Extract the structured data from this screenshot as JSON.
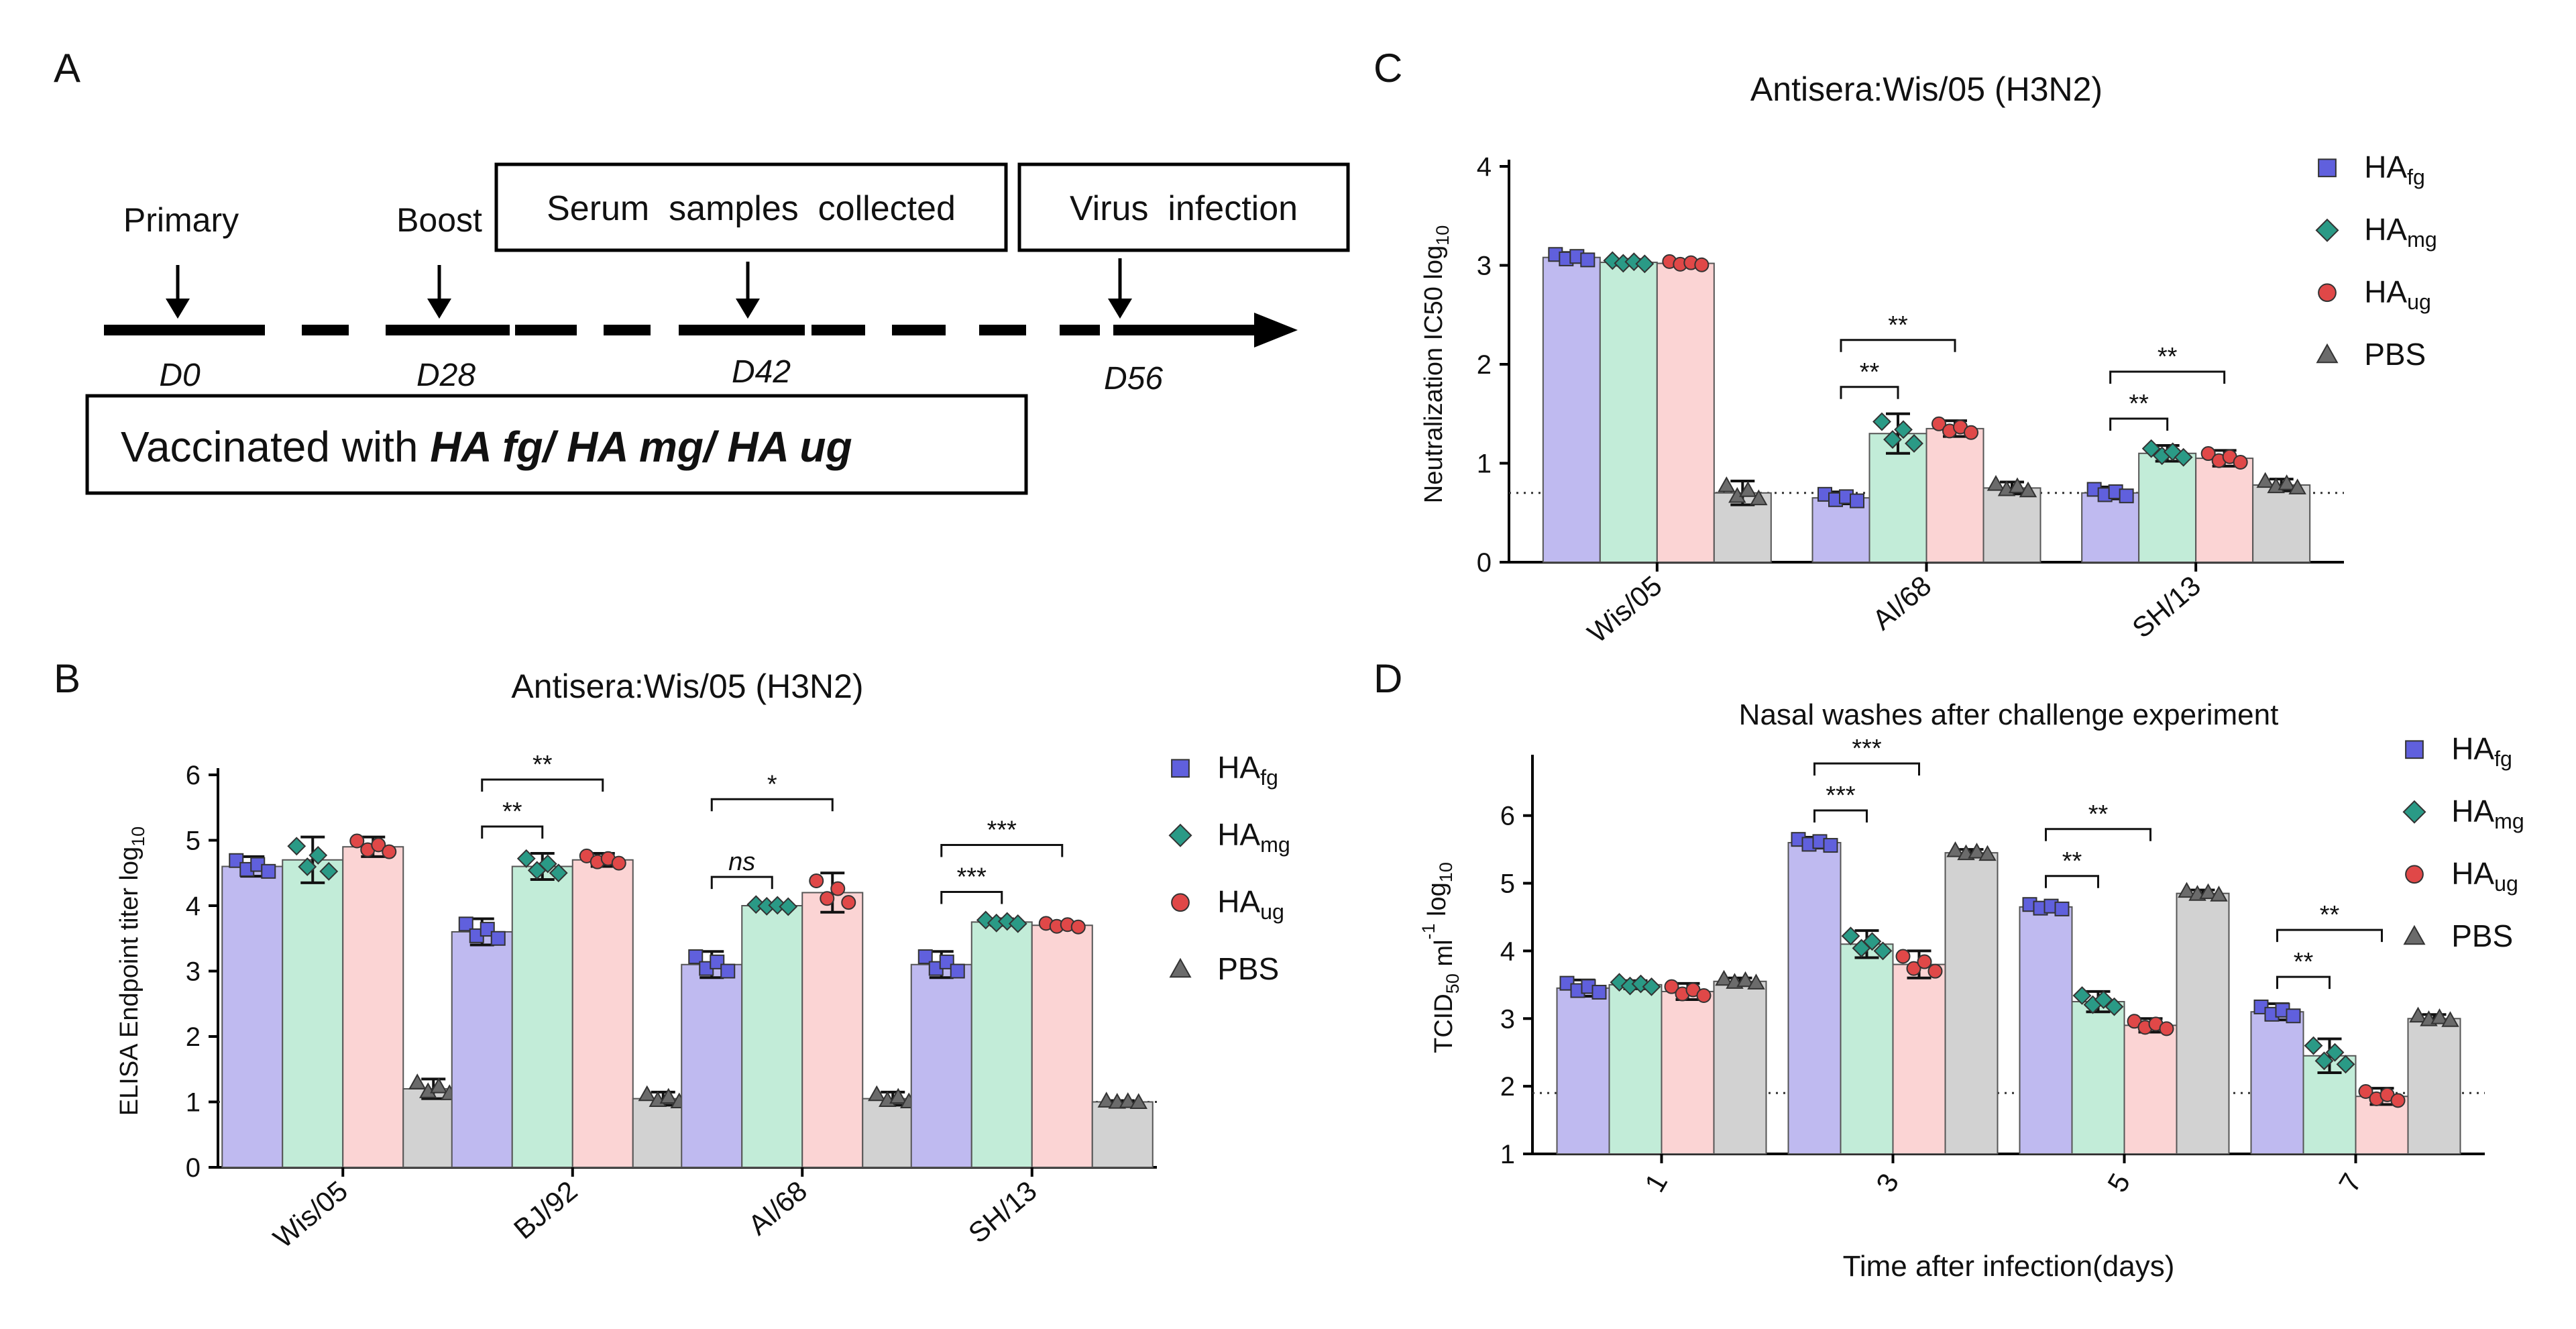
{
  "panel_letters": {
    "a": "A",
    "b": "B",
    "c": "C",
    "d": "D"
  },
  "colors": {
    "HA_fg": "#bfbaf0",
    "HA_fg_marker": "#6060dd",
    "HA_mg": "#c2ecd8",
    "HA_mg_marker": "#2a9a86",
    "HA_ug": "#fbd4d4",
    "HA_ug_marker": "#e04848",
    "PBS": "#d2d2d2",
    "PBS_marker": "#6b6b6b"
  },
  "legend": [
    {
      "key": "HA_fg",
      "base": "HA",
      "sub": "fg",
      "marker": "square"
    },
    {
      "key": "HA_mg",
      "base": "HA",
      "sub": "mg",
      "marker": "diamond"
    },
    {
      "key": "HA_ug",
      "base": "HA",
      "sub": "ug",
      "marker": "circle"
    },
    {
      "key": "PBS",
      "base": "PBS",
      "sub": "",
      "marker": "triangle"
    }
  ],
  "timeline": {
    "primary": "Primary",
    "boost": "Boost",
    "serum": "Serum  samples  collected",
    "virus": "Virus  infection",
    "days": [
      "D0",
      "D28",
      "D42",
      "D56"
    ],
    "vaccinated_prefix": "Vaccinated with ",
    "vaccinated_bold": "HA fg/ HA mg/ HA ug"
  },
  "chart_data": [
    {
      "panel": "B",
      "type": "bar",
      "title": "Antisera:Wis/05 (H3N2)",
      "xlabel": "",
      "ylabel": "ELISA Endpoint titer log",
      "ylabel_sub": "10",
      "ylim": [
        0,
        6
      ],
      "yticks": [
        "0",
        "1",
        "2",
        "3",
        "4",
        "5",
        "6"
      ],
      "categories": [
        "Wis/05",
        "BJ/92",
        "AI/68",
        "SH/13"
      ],
      "series": [
        {
          "name": "HA_fg",
          "values": [
            4.6,
            3.6,
            3.1,
            3.1
          ],
          "err": [
            0.15,
            0.2,
            0.2,
            0.2
          ]
        },
        {
          "name": "HA_mg",
          "values": [
            4.7,
            4.6,
            4.0,
            3.75
          ],
          "err": [
            0.35,
            0.2,
            0.03,
            0.05
          ]
        },
        {
          "name": "HA_ug",
          "values": [
            4.9,
            4.7,
            4.2,
            3.7
          ],
          "err": [
            0.15,
            0.1,
            0.3,
            0.05
          ]
        },
        {
          "name": "PBS",
          "values": [
            1.2,
            1.05,
            1.05,
            1.0
          ],
          "err": [
            0.15,
            0.1,
            0.1,
            0.02
          ]
        }
      ],
      "dotted_line": 1,
      "significance": [
        {
          "cat": 1,
          "from": 0,
          "to": 1,
          "label": "**",
          "italic": false
        },
        {
          "cat": 1,
          "from": 0,
          "to": 2,
          "label": "**",
          "italic": false
        },
        {
          "cat": 2,
          "from": 0,
          "to": 1,
          "label": "ns",
          "italic": true
        },
        {
          "cat": 2,
          "from": 0,
          "to": 2,
          "label": "*",
          "italic": false
        },
        {
          "cat": 3,
          "from": 0,
          "to": 1,
          "label": "***",
          "italic": false
        },
        {
          "cat": 3,
          "from": 0,
          "to": 2,
          "label": "***",
          "italic": false
        }
      ]
    },
    {
      "panel": "C",
      "type": "bar",
      "title": "Antisera:Wis/05 (H3N2)",
      "xlabel": "",
      "ylabel": "Neutralization IC50 log",
      "ylabel_sub": "10",
      "ylim": [
        0,
        4
      ],
      "yticks": [
        "0",
        "1",
        "2",
        "3",
        "4"
      ],
      "categories": [
        "Wis/05",
        "AI/68",
        "SH/13"
      ],
      "series": [
        {
          "name": "HA_fg",
          "values": [
            3.08,
            0.65,
            0.7
          ],
          "err": [
            0.05,
            0.06,
            0.06
          ]
        },
        {
          "name": "HA_mg",
          "values": [
            3.03,
            1.3,
            1.1
          ],
          "err": [
            0.03,
            0.2,
            0.08
          ]
        },
        {
          "name": "HA_ug",
          "values": [
            3.02,
            1.35,
            1.05
          ],
          "err": [
            0.03,
            0.08,
            0.08
          ]
        },
        {
          "name": "PBS",
          "values": [
            0.7,
            0.75,
            0.78
          ],
          "err": [
            0.12,
            0.06,
            0.06
          ]
        }
      ],
      "dotted_line": 0.7,
      "significance": [
        {
          "cat": 1,
          "from": 0,
          "to": 1,
          "label": "**",
          "italic": false
        },
        {
          "cat": 1,
          "from": 0,
          "to": 2,
          "label": "**",
          "italic": false
        },
        {
          "cat": 2,
          "from": 0,
          "to": 1,
          "label": "**",
          "italic": false
        },
        {
          "cat": 2,
          "from": 0,
          "to": 2,
          "label": "**",
          "italic": false
        }
      ]
    },
    {
      "panel": "D",
      "type": "bar",
      "title": "Nasal washes after challenge experiment",
      "xlabel": "Time after infection(days)",
      "ylabel_parts": [
        "TCID",
        "50",
        " ml",
        "-1",
        " log",
        "10"
      ],
      "ylim": [
        1,
        6.8
      ],
      "yticks": [
        "1",
        "2",
        "3",
        "4",
        "5",
        "6"
      ],
      "categories": [
        "1",
        "3",
        "5",
        "7"
      ],
      "series": [
        {
          "name": "HA_fg",
          "values": [
            3.45,
            5.6,
            4.65,
            3.1
          ],
          "err": [
            0.12,
            0.08,
            0.06,
            0.12
          ]
        },
        {
          "name": "HA_mg",
          "values": [
            3.5,
            4.1,
            3.25,
            2.45
          ],
          "err": [
            0.06,
            0.2,
            0.15,
            0.25
          ]
        },
        {
          "name": "HA_ug",
          "values": [
            3.4,
            3.8,
            2.9,
            1.85
          ],
          "err": [
            0.12,
            0.2,
            0.1,
            0.12
          ]
        },
        {
          "name": "PBS",
          "values": [
            3.55,
            5.45,
            4.85,
            3.0
          ],
          "err": [
            0.05,
            0.05,
            0.05,
            0.06
          ]
        }
      ],
      "dotted_line": 1.9,
      "significance": [
        {
          "cat": 1,
          "from": 0,
          "to": 1,
          "label": "***",
          "italic": false
        },
        {
          "cat": 1,
          "from": 0,
          "to": 2,
          "label": "***",
          "italic": false
        },
        {
          "cat": 2,
          "from": 0,
          "to": 1,
          "label": "**",
          "italic": false
        },
        {
          "cat": 2,
          "from": 0,
          "to": 2,
          "label": "**",
          "italic": false
        },
        {
          "cat": 3,
          "from": 0,
          "to": 1,
          "label": "**",
          "italic": false
        },
        {
          "cat": 3,
          "from": 0,
          "to": 2,
          "label": "**",
          "italic": false
        }
      ]
    }
  ]
}
